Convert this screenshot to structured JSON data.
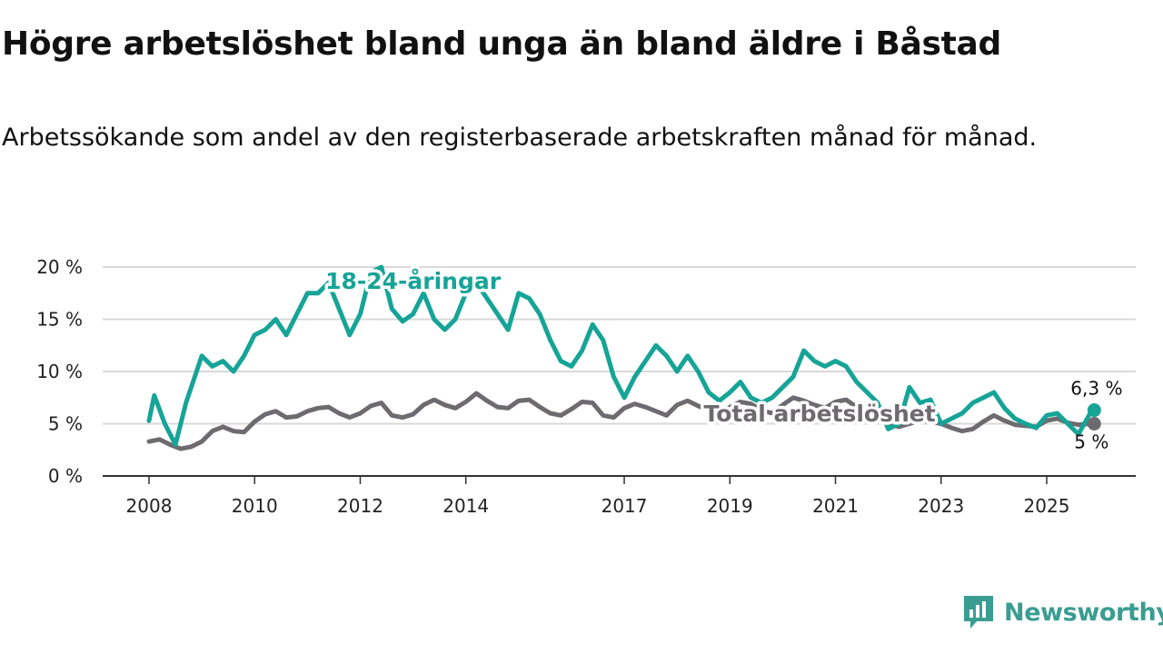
{
  "title": "Högre arbetslöshet bland unga än bland äldre i Båstad",
  "subtitle": "Arbetssökande som andel av den registerbaserade arbetskraften månad för månad.",
  "brand": {
    "name": "Newsworthy",
    "icon": "newsworthy-logo-icon",
    "color": "#3a9d91"
  },
  "chart_data": {
    "type": "line",
    "title": "Högre arbetslöshet bland unga än bland äldre i Båstad",
    "xlabel": "",
    "ylabel": "",
    "xlim": [
      2008,
      2026.3
    ],
    "ylim": [
      0,
      20
    ],
    "grid": true,
    "x_ticks": [
      2008,
      2010,
      2012,
      2014,
      2017,
      2019,
      2021,
      2023,
      2025
    ],
    "y_ticks": [
      {
        "value": 0,
        "label": "0 %"
      },
      {
        "value": 5,
        "label": "5 %"
      },
      {
        "value": 10,
        "label": "10 %"
      },
      {
        "value": 15,
        "label": "15 %"
      },
      {
        "value": 20,
        "label": "20 %"
      }
    ],
    "series": [
      {
        "name": "18-24-åringar",
        "color": "#16a497",
        "end_label": "6,3 %",
        "x": [
          2008.0,
          2008.1,
          2008.3,
          2008.5,
          2008.7,
          2009.0,
          2009.2,
          2009.4,
          2009.6,
          2009.8,
          2010.0,
          2010.2,
          2010.4,
          2010.6,
          2010.8,
          2011.0,
          2011.2,
          2011.4,
          2011.6,
          2011.8,
          2012.0,
          2012.2,
          2012.4,
          2012.6,
          2012.8,
          2013.0,
          2013.2,
          2013.4,
          2013.6,
          2013.8,
          2014.0,
          2014.2,
          2014.4,
          2014.6,
          2014.8,
          2015.0,
          2015.2,
          2015.4,
          2015.6,
          2015.8,
          2016.0,
          2016.2,
          2016.4,
          2016.6,
          2016.8,
          2017.0,
          2017.2,
          2017.4,
          2017.6,
          2017.8,
          2018.0,
          2018.2,
          2018.4,
          2018.6,
          2018.8,
          2019.0,
          2019.2,
          2019.4,
          2019.6,
          2019.8,
          2020.0,
          2020.2,
          2020.4,
          2020.6,
          2020.8,
          2021.0,
          2021.2,
          2021.4,
          2021.6,
          2021.8,
          2022.0,
          2022.2,
          2022.4,
          2022.6,
          2022.8,
          2023.0,
          2023.2,
          2023.4,
          2023.6,
          2023.8,
          2024.0,
          2024.2,
          2024.4,
          2024.6,
          2024.8,
          2025.0,
          2025.2,
          2025.4,
          2025.6,
          2025.8,
          2025.9
        ],
        "y": [
          5.3,
          7.7,
          5.0,
          3.0,
          7.0,
          11.5,
          10.5,
          11.0,
          10.0,
          11.5,
          13.5,
          14.0,
          15.0,
          13.5,
          15.5,
          17.5,
          17.5,
          18.5,
          16.0,
          13.5,
          15.5,
          19.5,
          20.0,
          16.0,
          14.8,
          15.5,
          17.5,
          15.0,
          14.0,
          15.0,
          17.5,
          18.5,
          17.0,
          15.5,
          14.0,
          17.5,
          17.0,
          15.5,
          13.0,
          11.0,
          10.5,
          12.0,
          14.5,
          13.0,
          9.5,
          7.5,
          9.5,
          11.0,
          12.5,
          11.5,
          10.0,
          11.5,
          10.0,
          8.0,
          7.2,
          8.0,
          9.0,
          7.5,
          7.0,
          7.5,
          8.5,
          9.5,
          12.0,
          11.0,
          10.5,
          11.0,
          10.5,
          9.0,
          8.0,
          7.0,
          4.5,
          5.0,
          8.5,
          7.0,
          7.3,
          5.0,
          5.5,
          6.0,
          7.0,
          7.5,
          8.0,
          6.5,
          5.5,
          5.0,
          4.6,
          5.8,
          6.0,
          5.0,
          4.0,
          5.8,
          6.3
        ]
      },
      {
        "name": "Total arbetslöshet",
        "color": "#6e6b70",
        "end_label": "5 %",
        "x": [
          2008.0,
          2008.2,
          2008.4,
          2008.6,
          2008.8,
          2009.0,
          2009.2,
          2009.4,
          2009.6,
          2009.8,
          2010.0,
          2010.2,
          2010.4,
          2010.6,
          2010.8,
          2011.0,
          2011.2,
          2011.4,
          2011.6,
          2011.8,
          2012.0,
          2012.2,
          2012.4,
          2012.6,
          2012.8,
          2013.0,
          2013.2,
          2013.4,
          2013.6,
          2013.8,
          2014.0,
          2014.2,
          2014.4,
          2014.6,
          2014.8,
          2015.0,
          2015.2,
          2015.4,
          2015.6,
          2015.8,
          2016.0,
          2016.2,
          2016.4,
          2016.6,
          2016.8,
          2017.0,
          2017.2,
          2017.4,
          2017.6,
          2017.8,
          2018.0,
          2018.2,
          2018.4,
          2018.6,
          2018.8,
          2019.0,
          2019.2,
          2019.4,
          2019.6,
          2019.8,
          2020.0,
          2020.2,
          2020.4,
          2020.6,
          2020.8,
          2021.0,
          2021.2,
          2021.4,
          2021.6,
          2021.8,
          2022.0,
          2022.2,
          2022.4,
          2022.6,
          2022.8,
          2023.0,
          2023.2,
          2023.4,
          2023.6,
          2023.8,
          2024.0,
          2024.2,
          2024.4,
          2024.6,
          2024.8,
          2025.0,
          2025.2,
          2025.4,
          2025.6,
          2025.8,
          2025.9
        ],
        "y": [
          3.3,
          3.5,
          3.0,
          2.6,
          2.8,
          3.3,
          4.3,
          4.7,
          4.3,
          4.2,
          5.2,
          5.9,
          6.2,
          5.6,
          5.7,
          6.2,
          6.5,
          6.6,
          6.0,
          5.6,
          6.0,
          6.7,
          7.0,
          5.8,
          5.6,
          5.9,
          6.8,
          7.3,
          6.8,
          6.5,
          7.1,
          7.9,
          7.2,
          6.6,
          6.5,
          7.2,
          7.3,
          6.6,
          6.0,
          5.8,
          6.4,
          7.1,
          7.0,
          5.8,
          5.6,
          6.5,
          6.9,
          6.6,
          6.2,
          5.8,
          6.8,
          7.2,
          6.7,
          6.3,
          6.0,
          6.6,
          7.1,
          6.9,
          6.3,
          6.0,
          6.8,
          7.5,
          7.2,
          6.8,
          6.5,
          7.1,
          7.3,
          6.6,
          6.0,
          5.6,
          5.0,
          4.7,
          5.0,
          5.3,
          5.2,
          5.0,
          4.6,
          4.3,
          4.5,
          5.2,
          5.8,
          5.3,
          4.9,
          4.8,
          4.7,
          5.3,
          5.5,
          5.1,
          4.9,
          5.0,
          5.0
        ]
      }
    ],
    "annotations": [
      {
        "text": "18-24-åringar",
        "series": "18-24-åringar",
        "x": 2013.0,
        "y": 18.7
      },
      {
        "text": "Total arbetslöshet",
        "series": "Total arbetslöshet",
        "x": 2020.7,
        "y": 6.0
      }
    ]
  }
}
